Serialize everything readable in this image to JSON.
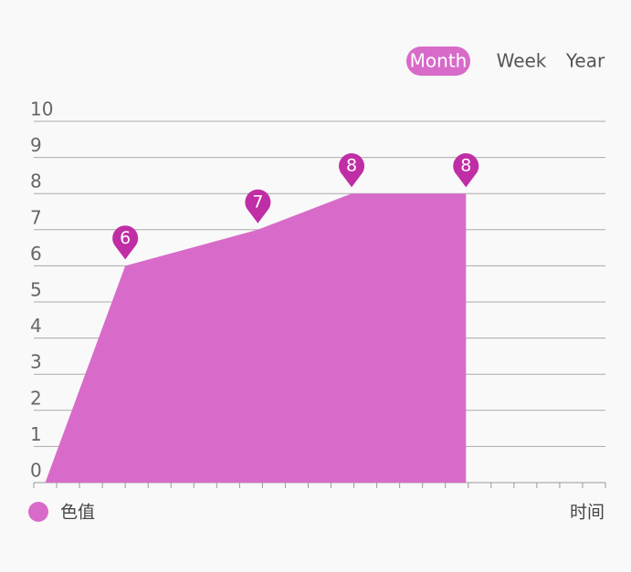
{
  "chart_data": {
    "type": "area",
    "tabs": [
      "Month",
      "Week",
      "Year"
    ],
    "selected_tab": 0,
    "tab_color": "#d86bc9",
    "x_label": "时间",
    "x": [
      0.5,
      4,
      9.8,
      13.9,
      18.9
    ],
    "xlim": [
      0,
      25
    ],
    "xticks": [
      0,
      1,
      2,
      3,
      4,
      5,
      6,
      7,
      8,
      9,
      10,
      11,
      12,
      13,
      14,
      15,
      16,
      17,
      18,
      19,
      20,
      21,
      22,
      23,
      24,
      25
    ],
    "ylim": [
      0,
      10
    ],
    "yticks": [
      0,
      1,
      2,
      3,
      4,
      5,
      6,
      7,
      8,
      9,
      10
    ],
    "grid": true,
    "marker_color": "#c02ea5",
    "series": [
      {
        "name": "色值",
        "color": "#d86bc9",
        "values": [
          0,
          6,
          7,
          8,
          8
        ]
      }
    ]
  }
}
